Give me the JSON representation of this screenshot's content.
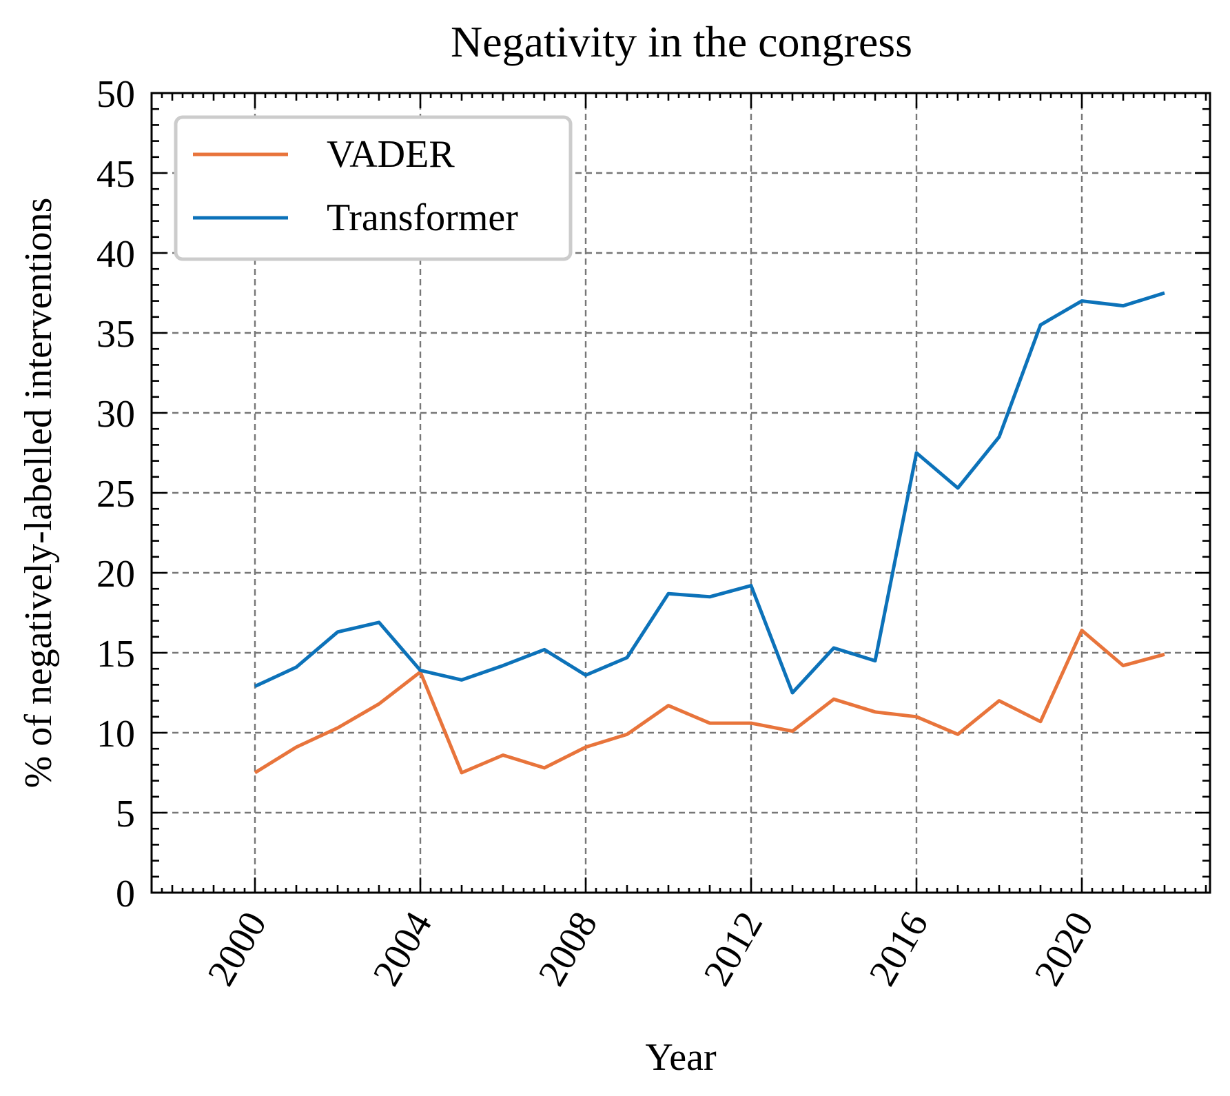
{
  "chart_data": {
    "type": "line",
    "title": "Negativity in the congress",
    "xlabel": "Year",
    "ylabel": "% of negatively-labelled interventions",
    "xlim": [
      1997.5,
      2023.1
    ],
    "ylim": [
      0,
      50
    ],
    "x_ticks": [
      2000,
      2004,
      2008,
      2012,
      2016,
      2020
    ],
    "y_ticks": [
      0,
      5,
      10,
      15,
      20,
      25,
      30,
      35,
      40,
      45,
      50
    ],
    "grid": true,
    "legend_position": "top-left",
    "x": [
      2000,
      2001,
      2002,
      2003,
      2004,
      2005,
      2006,
      2007,
      2008,
      2009,
      2010,
      2011,
      2012,
      2013,
      2014,
      2015,
      2016,
      2017,
      2018,
      2019,
      2020,
      2021,
      2022
    ],
    "series": [
      {
        "name": "VADER",
        "color": "#E8743B",
        "values": [
          7.5,
          9.1,
          10.3,
          11.8,
          13.8,
          7.5,
          8.6,
          7.8,
          9.1,
          9.9,
          11.7,
          10.6,
          10.6,
          10.1,
          12.1,
          11.3,
          11.0,
          9.9,
          12.0,
          10.7,
          16.4,
          14.2,
          14.9
        ]
      },
      {
        "name": "Transformer",
        "color": "#0C72B9",
        "values": [
          12.9,
          14.1,
          16.3,
          16.9,
          13.9,
          13.3,
          14.2,
          15.2,
          13.6,
          14.7,
          18.7,
          18.5,
          19.2,
          12.5,
          15.3,
          14.5,
          27.5,
          25.3,
          28.5,
          35.5,
          37.0,
          36.7,
          37.5
        ]
      }
    ]
  }
}
